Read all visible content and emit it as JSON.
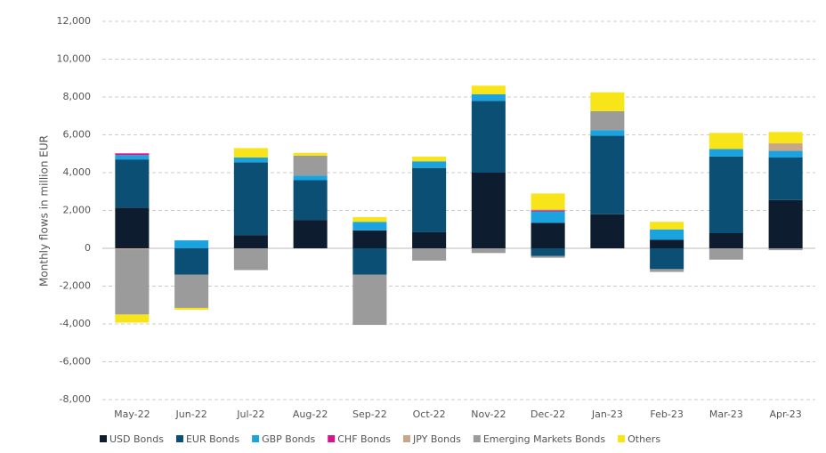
{
  "chart_data": {
    "type": "bar",
    "stacked": true,
    "y_label": "Monthly flows in million EUR",
    "categories": [
      "May-22",
      "Jun-22",
      "Jul-22",
      "Aug-22",
      "Sep-22",
      "Oct-22",
      "Nov-22",
      "Dec-22",
      "Jan-23",
      "Feb-23",
      "Mar-23",
      "Apr-23"
    ],
    "series": [
      {
        "name": "USD Bonds",
        "color": "#0d1c2e",
        "values": [
          2150,
          0,
          700,
          1500,
          950,
          850,
          4000,
          1350,
          1800,
          450,
          800,
          2550
        ]
      },
      {
        "name": "EUR Bonds",
        "color": "#0b4f74",
        "values": [
          2550,
          -1400,
          3850,
          2100,
          -1400,
          3400,
          3800,
          -400,
          4150,
          -1100,
          4050,
          2250
        ]
      },
      {
        "name": "GBP Bonds",
        "color": "#1aa3de",
        "values": [
          230,
          420,
          250,
          250,
          450,
          350,
          350,
          600,
          300,
          550,
          400,
          350
        ]
      },
      {
        "name": "CHF Bonds",
        "color": "#d4148c",
        "values": [
          90,
          0,
          0,
          0,
          0,
          0,
          0,
          50,
          0,
          0,
          0,
          0
        ]
      },
      {
        "name": "JPY Bonds",
        "color": "#c9a58a",
        "values": [
          -50,
          0,
          0,
          0,
          0,
          0,
          0,
          50,
          0,
          0,
          0,
          400
        ]
      },
      {
        "name": "Emerging Markets Bonds",
        "color": "#9b9b9b",
        "values": [
          -3450,
          -1750,
          -1150,
          1050,
          -2650,
          -650,
          -250,
          -100,
          1000,
          -150,
          -600,
          -100
        ]
      },
      {
        "name": "Others",
        "color": "#f7e51a",
        "values": [
          -430,
          -100,
          500,
          150,
          250,
          250,
          450,
          850,
          1000,
          400,
          850,
          600
        ]
      }
    ],
    "ylim": [
      -8000,
      12000
    ],
    "yticks": [
      {
        "value": -8000,
        "label": "-8,000"
      },
      {
        "value": -6000,
        "label": "-6,000"
      },
      {
        "value": -4000,
        "label": "-4,000"
      },
      {
        "value": -2000,
        "label": "-2,000"
      },
      0,
      {
        "value": 2000,
        "label": "2,000"
      },
      {
        "value": 4000,
        "label": "4,000"
      },
      {
        "value": 6000,
        "label": "6,000"
      },
      {
        "value": 8000,
        "label": "8,000"
      },
      {
        "value": 10000,
        "label": "10,000"
      },
      {
        "value": 12000,
        "label": "12,000"
      }
    ],
    "grid": true,
    "legend": "bottom"
  }
}
